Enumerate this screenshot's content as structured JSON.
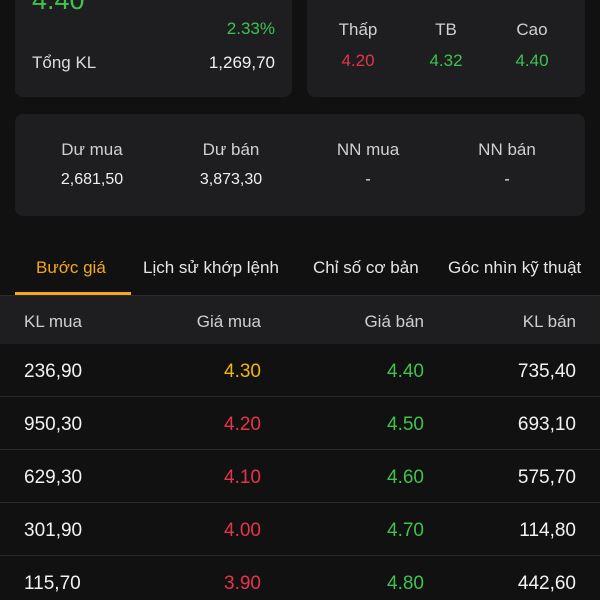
{
  "summary": {
    "price": "4.40",
    "change_pct": "2.33%",
    "volume_label": "Tổng KL",
    "volume_value": "1,269,70"
  },
  "range": {
    "low_label": "Thấp",
    "low_value": "4.20",
    "avg_label": "TB",
    "avg_value": "4.32",
    "high_label": "Cao",
    "high_value": "4.40"
  },
  "depth": {
    "bid_surplus_label": "Dư mua",
    "bid_surplus_value": "2,681,50",
    "ask_surplus_label": "Dư bán",
    "ask_surplus_value": "3,873,30",
    "foreign_buy_label": "NN mua",
    "foreign_buy_value": "-",
    "foreign_sell_label": "NN bán",
    "foreign_sell_value": "-"
  },
  "tabs": [
    {
      "label": "Bước giá",
      "active": true
    },
    {
      "label": "Lịch sử khớp lệnh",
      "active": false
    },
    {
      "label": "Chỉ số cơ bản",
      "active": false
    },
    {
      "label": "Góc nhìn kỹ thuật",
      "active": false
    }
  ],
  "table": {
    "headers": [
      "KL mua",
      "Giá mua",
      "Giá bán",
      "KL bán"
    ],
    "rows": [
      {
        "bid_vol": "236,90",
        "bid_price": "4.30",
        "ask_price": "4.40",
        "ask_vol": "735,40"
      },
      {
        "bid_vol": "950,30",
        "bid_price": "4.20",
        "ask_price": "4.50",
        "ask_vol": "693,10"
      },
      {
        "bid_vol": "629,30",
        "bid_price": "4.10",
        "ask_price": "4.60",
        "ask_vol": "575,70"
      },
      {
        "bid_vol": "301,90",
        "bid_price": "4.00",
        "ask_price": "4.70",
        "ask_vol": "114,80"
      },
      {
        "bid_vol": "115,70",
        "bid_price": "3.90",
        "ask_price": "4.80",
        "ask_vol": "442,60"
      }
    ]
  },
  "colors": {
    "up": "#3fc24f",
    "down": "#e8334d",
    "reference": "#f5b800",
    "accent": "#f5a623"
  }
}
